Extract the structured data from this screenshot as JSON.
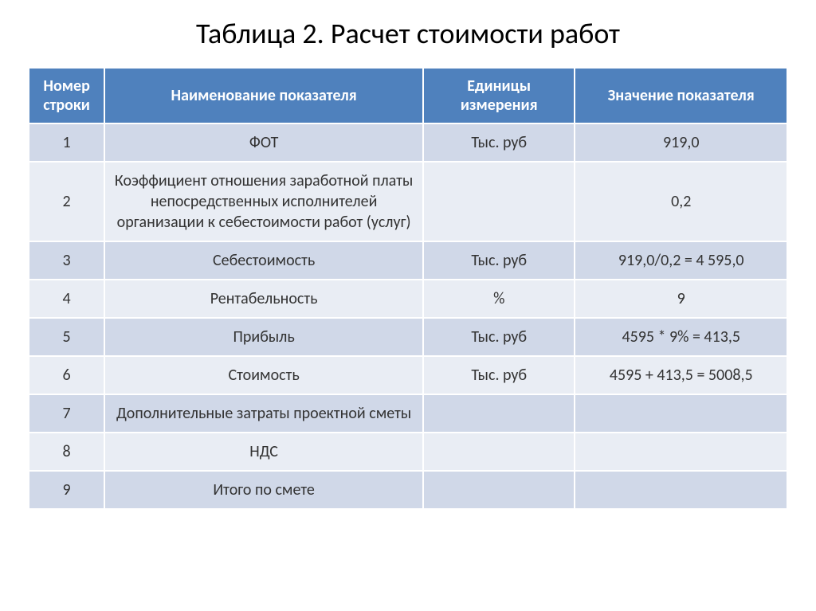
{
  "title": "Таблица 2. Расчет стоимости работ",
  "table": {
    "columns": [
      {
        "label": "Номер строки",
        "width": "10%"
      },
      {
        "label": "Наименование показателя",
        "width": "42%"
      },
      {
        "label": "Единицы измерения",
        "width": "20%"
      },
      {
        "label": "Значение показателя",
        "width": "28%"
      }
    ],
    "header_bg_color": "#4f81bd",
    "header_text_color": "#ffffff",
    "row_odd_color": "#d0d8e8",
    "row_even_color": "#e9edf4",
    "border_color": "#ffffff",
    "title_fontsize": 36,
    "header_fontsize": 20,
    "cell_fontsize": 20,
    "rows": [
      {
        "num": "1",
        "name": "ФОТ",
        "unit": "Тыс.  руб",
        "value": "919,0"
      },
      {
        "num": "2",
        "name": "Коэффициент   отношения заработной платы непосредственных исполнителей организации к себестоимости работ (услуг)",
        "unit": "",
        "value": "0,2"
      },
      {
        "num": "3",
        "name": "Себестоимость",
        "unit": "Тыс.  руб",
        "value": "919,0/0,2 = 4 595,0"
      },
      {
        "num": "4",
        "name": "Рентабельность",
        "unit": "%",
        "value": "9"
      },
      {
        "num": "5",
        "name": "Прибыль",
        "unit": "Тыс.  руб",
        "value": "4595 * 9% = 413,5"
      },
      {
        "num": "6",
        "name": "Стоимость",
        "unit": "Тыс.  руб",
        "value": "4595 + 413,5 = 5008,5"
      },
      {
        "num": "7",
        "name": "Дополнительные затраты проектной сметы",
        "unit": "",
        "value": ""
      },
      {
        "num": "8",
        "name": "НДС",
        "unit": "",
        "value": ""
      },
      {
        "num": "9",
        "name": "Итого по смете",
        "unit": "",
        "value": ""
      }
    ]
  }
}
